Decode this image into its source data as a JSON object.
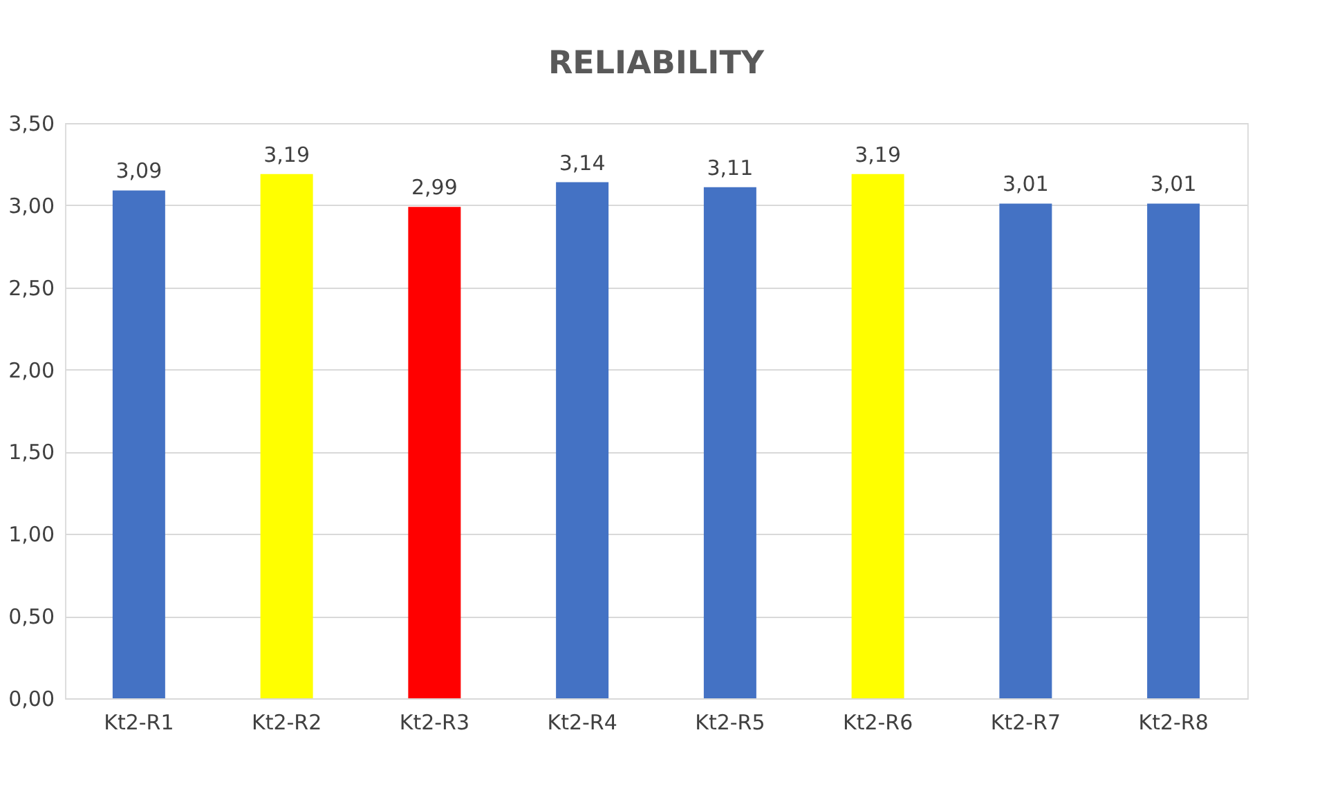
{
  "chart_data": {
    "type": "bar",
    "title": "RELIABILITY",
    "categories": [
      "Kt2-R1",
      "Kt2-R2",
      "Kt2-R3",
      "Kt2-R4",
      "Kt2-R5",
      "Kt2-R6",
      "Kt2-R7",
      "Kt2-R8"
    ],
    "values": [
      3.09,
      3.19,
      2.99,
      3.14,
      3.11,
      3.19,
      3.01,
      3.01
    ],
    "colors": [
      "#4472c4",
      "#ffff00",
      "#ff0000",
      "#4472c4",
      "#4472c4",
      "#ffff00",
      "#4472c4",
      "#4472c4"
    ],
    "value_labels": [
      "3,09",
      "3,19",
      "2,99",
      "3,14",
      "3,11",
      "3,19",
      "3,01",
      "3,01"
    ],
    "ylim": [
      0,
      3.5
    ],
    "yticks": [
      {
        "value": 0,
        "label": "0,00"
      },
      {
        "value": 0.5,
        "label": "0,50"
      },
      {
        "value": 1,
        "label": "1,00"
      },
      {
        "value": 1.5,
        "label": "1,50"
      },
      {
        "value": 2,
        "label": "2,00"
      },
      {
        "value": 2.5,
        "label": "2,50"
      },
      {
        "value": 3,
        "label": "3,00"
      },
      {
        "value": 3.5,
        "label": "3,50"
      }
    ],
    "grid": "y"
  }
}
